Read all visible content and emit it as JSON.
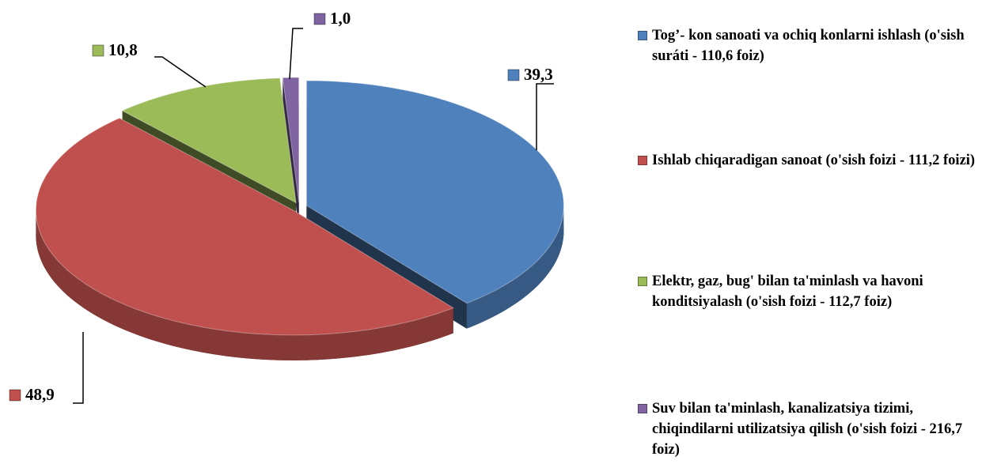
{
  "chart_data": {
    "type": "pie",
    "categories": [
      "Tog’- kon sanoati va ochiq konlarni ishlash (o'sish suráti - 110,6 foiz)",
      "Ishlab chiqaradigan sanoat (o'sish foizi - 111,2 foizi)",
      "Elektr, gaz, bug' bilan ta'minlash va havoni konditsiyalash (o'sish foizi - 112,7 foiz)",
      "Suv bilan ta'minlash, kanalizatsiya tizimi, chiqindilarni utilizatsiya qilish (o'sish foizi - 216,7 foiz)"
    ],
    "values": [
      39.3,
      48.9,
      10.8,
      1.0
    ],
    "value_labels": [
      "39,3",
      "48,9",
      "10,8",
      "1,0"
    ],
    "colors": [
      "#4f81bd",
      "#c0504d",
      "#9bbb59",
      "#8064a2"
    ],
    "legend": "right"
  }
}
